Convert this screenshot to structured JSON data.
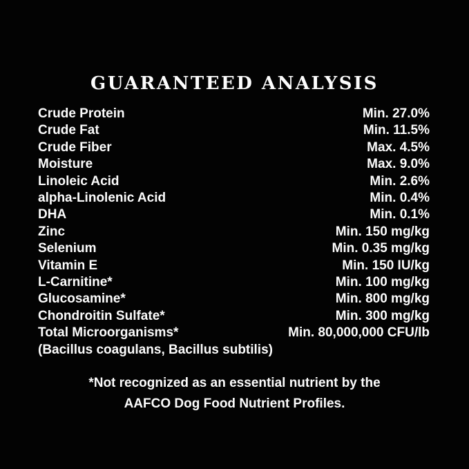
{
  "page": {
    "background_color": "#030303",
    "text_color": "#fcfcfc"
  },
  "title": "GUARANTEED ANALYSIS",
  "analysis": {
    "rows": [
      {
        "label": "Crude Protein",
        "value": "Min. 27.0%"
      },
      {
        "label": "Crude Fat",
        "value": "Min. 11.5%"
      },
      {
        "label": "Crude Fiber",
        "value": "Max. 4.5%"
      },
      {
        "label": "Moisture",
        "value": "Max. 9.0%"
      },
      {
        "label": "Linoleic Acid",
        "value": "Min. 2.6%"
      },
      {
        "label": "alpha-Linolenic Acid",
        "value": "Min. 0.4%"
      },
      {
        "label": "DHA",
        "value": "Min. 0.1%"
      },
      {
        "label": "Zinc",
        "value": "Min. 150 mg/kg"
      },
      {
        "label": "Selenium",
        "value": "Min. 0.35 mg/kg"
      },
      {
        "label": "Vitamin E",
        "value": "Min. 150 IU/kg"
      },
      {
        "label": "L-Carnitine*",
        "value": "Min. 100 mg/kg"
      },
      {
        "label": "Glucosamine*",
        "value": "Min. 800 mg/kg"
      },
      {
        "label": "Chondroitin Sulfate*",
        "value": "Min. 300 mg/kg"
      },
      {
        "label": "Total Microorganisms*",
        "value": "Min. 80,000,000 CFU/lb"
      }
    ],
    "continuation": "(Bacillus coagulans, Bacillus subtilis)"
  },
  "footnote": {
    "line1": "*Not recognized as an essential nutrient by the",
    "line2": "AAFCO Dog Food Nutrient Profiles."
  }
}
